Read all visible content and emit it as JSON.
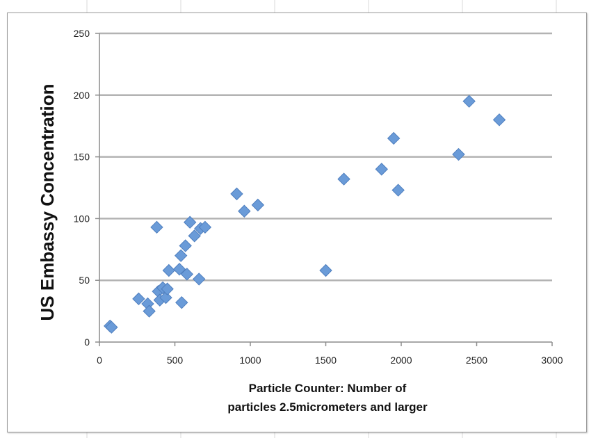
{
  "chart_data": {
    "type": "scatter",
    "title": "",
    "xlabel_lines": [
      "Particle Counter: Number of",
      "particles 2.5micrometers and larger"
    ],
    "ylabel": "US Embassy Concentration",
    "xlim": [
      0,
      3000
    ],
    "ylim": [
      0,
      250
    ],
    "xticks": [
      0,
      500,
      1000,
      1500,
      2000,
      2500,
      3000
    ],
    "yticks": [
      0,
      50,
      100,
      150,
      200,
      250
    ],
    "grid": "horizontal",
    "legend": "none",
    "marker": "diamond",
    "marker_color": "#6a9bd8",
    "points": [
      [
        70,
        13
      ],
      [
        80,
        12
      ],
      [
        260,
        35
      ],
      [
        320,
        31
      ],
      [
        330,
        25
      ],
      [
        380,
        93
      ],
      [
        390,
        41
      ],
      [
        400,
        34
      ],
      [
        420,
        44
      ],
      [
        440,
        36
      ],
      [
        450,
        43
      ],
      [
        460,
        58
      ],
      [
        530,
        59
      ],
      [
        540,
        70
      ],
      [
        545,
        32
      ],
      [
        570,
        78
      ],
      [
        580,
        55
      ],
      [
        600,
        97
      ],
      [
        630,
        86
      ],
      [
        660,
        51
      ],
      [
        670,
        92
      ],
      [
        700,
        93
      ],
      [
        910,
        120
      ],
      [
        960,
        106
      ],
      [
        1050,
        111
      ],
      [
        1500,
        58
      ],
      [
        1620,
        132
      ],
      [
        1870,
        140
      ],
      [
        1950,
        165
      ],
      [
        1980,
        123
      ],
      [
        2380,
        152
      ],
      [
        2450,
        195
      ],
      [
        2650,
        180
      ]
    ]
  }
}
